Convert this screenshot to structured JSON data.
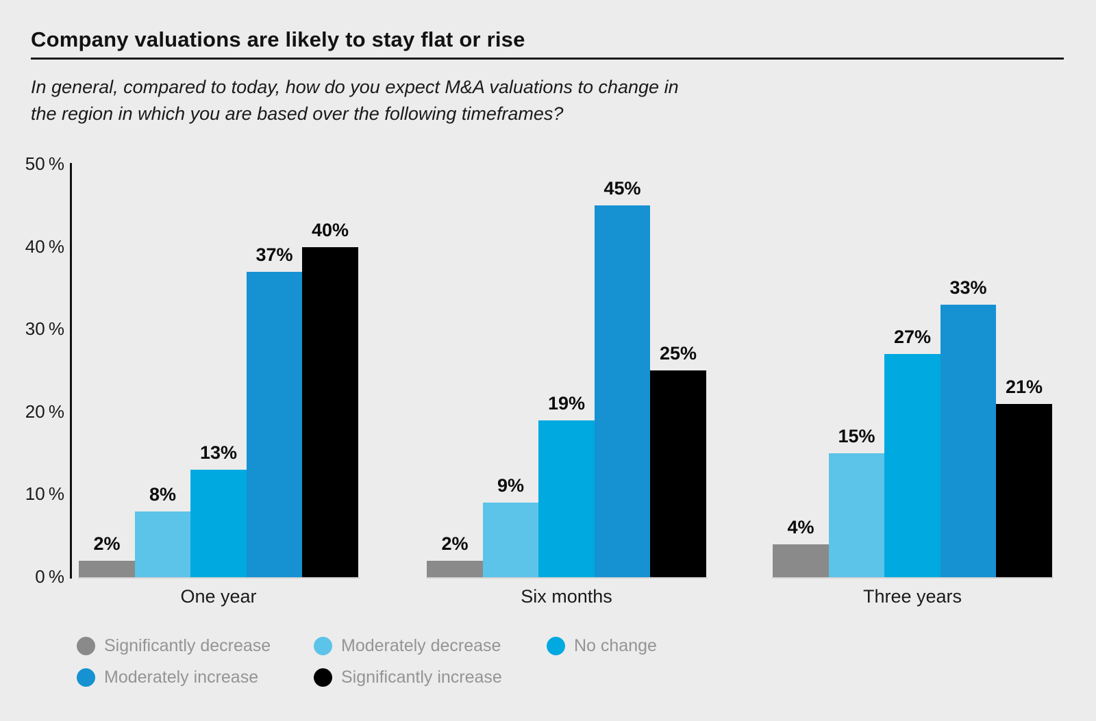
{
  "page": {
    "background": "#ececec"
  },
  "header": {
    "title": "Company valuations are likely to stay flat or rise",
    "subtitle_line1": "In general, compared to today, how do you expect M&A valuations to change in",
    "subtitle_line2": "the region in which you are based over the following timeframes?"
  },
  "chart_data": {
    "type": "bar",
    "title": "Company valuations are likely to stay flat or rise",
    "categories": [
      "One year",
      "Six months",
      "Three years"
    ],
    "series": [
      {
        "name": "Significantly decrease",
        "color": "#8a8a8a",
        "values": [
          2,
          2,
          4
        ]
      },
      {
        "name": "Moderately decrease",
        "color": "#5cc3e9",
        "values": [
          8,
          9,
          15
        ]
      },
      {
        "name": "No change",
        "color": "#00a9e0",
        "values": [
          13,
          19,
          27
        ]
      },
      {
        "name": "Moderately increase",
        "color": "#1691d2",
        "values": [
          37,
          45,
          33
        ]
      },
      {
        "name": "Significantly increase",
        "color": "#000000",
        "values": [
          40,
          25,
          21
        ]
      }
    ],
    "value_label_format": "{v}%",
    "y_axis": {
      "ylim": [
        0,
        50
      ],
      "ticks": [
        0,
        10,
        20,
        30,
        40,
        50
      ],
      "tick_labels": [
        "0 %",
        "10 %",
        "20 %",
        "30 %",
        "40 %",
        "50 %"
      ]
    },
    "grid": false,
    "legend_position": "bottom-left"
  }
}
